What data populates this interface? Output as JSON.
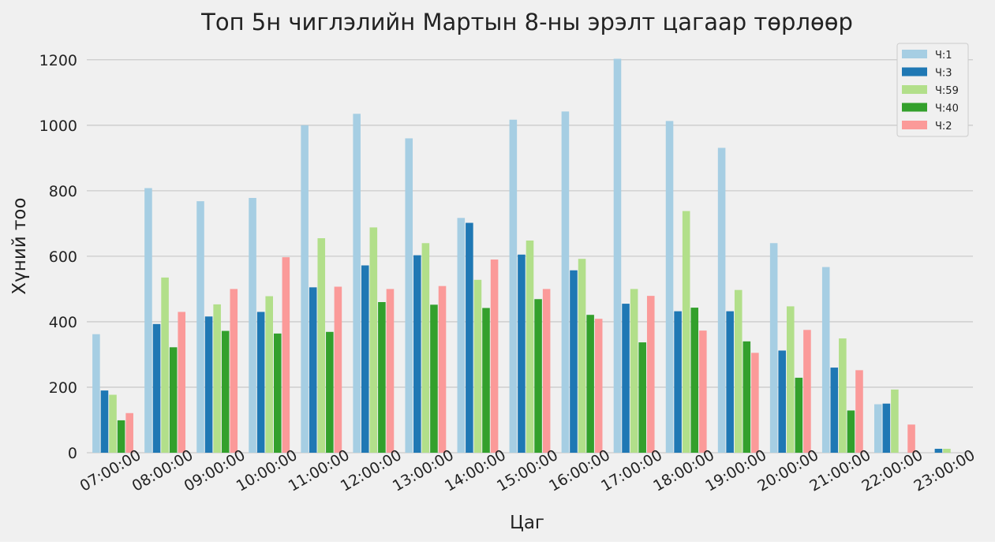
{
  "chart_data": {
    "type": "bar",
    "title": "Топ 5н чиглэлийн Мартын 8-ны эрэлт цагаар төрлөөр",
    "xlabel": "Цаг",
    "ylabel": "Хүний тоо",
    "categories": [
      "07:00:00",
      "08:00:00",
      "09:00:00",
      "10:00:00",
      "11:00:00",
      "12:00:00",
      "13:00:00",
      "14:00:00",
      "15:00:00",
      "16:00:00",
      "17:00:00",
      "18:00:00",
      "19:00:00",
      "20:00:00",
      "21:00:00",
      "22:00:00",
      "23:00:00"
    ],
    "ylim": [
      0,
      1250
    ],
    "yticks": [
      0,
      200,
      400,
      600,
      800,
      1000,
      1200
    ],
    "grid": true,
    "legend_position": "top-right",
    "series": [
      {
        "name": "Ч:1",
        "color": "#a6cee3",
        "values": [
          362,
          808,
          768,
          778,
          1000,
          1035,
          960,
          717,
          1017,
          1042,
          1203,
          1013,
          931,
          640,
          567,
          148,
          0
        ]
      },
      {
        "name": "Ч:3",
        "color": "#1f78b4",
        "values": [
          190,
          393,
          416,
          430,
          505,
          572,
          603,
          702,
          605,
          557,
          455,
          432,
          432,
          312,
          260,
          150,
          12
        ]
      },
      {
        "name": "Ч:59",
        "color": "#b2df8a",
        "values": [
          177,
          535,
          453,
          478,
          655,
          688,
          640,
          528,
          648,
          592,
          500,
          738,
          497,
          447,
          349,
          193,
          12
        ]
      },
      {
        "name": "Ч:40",
        "color": "#33a02c",
        "values": [
          99,
          322,
          372,
          364,
          369,
          460,
          452,
          442,
          469,
          421,
          337,
          443,
          340,
          229,
          129,
          0,
          0
        ]
      },
      {
        "name": "Ч:2",
        "color": "#fb9a99",
        "values": [
          121,
          430,
          500,
          597,
          507,
          500,
          509,
          590,
          500,
          409,
          479,
          373,
          305,
          375,
          252,
          86,
          0
        ]
      }
    ]
  }
}
